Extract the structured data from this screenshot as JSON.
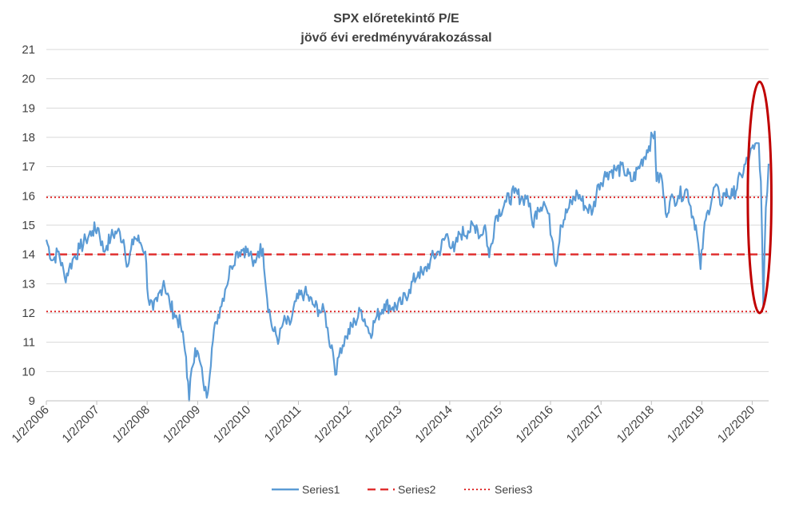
{
  "chart_data": {
    "type": "line",
    "title": "SPX előretekintő P/E",
    "subtitle": "jövő évi eredményvárakozással",
    "xlabel": "",
    "ylabel": "",
    "ylim": [
      9,
      21
    ],
    "yticks": [
      "9",
      "10",
      "11",
      "12",
      "13",
      "14",
      "15",
      "16",
      "17",
      "18",
      "19",
      "20",
      "21"
    ],
    "xticks": [
      "1/2/2006",
      "1/2/2007",
      "1/2/2008",
      "1/2/2009",
      "1/2/2010",
      "1/2/2011",
      "1/2/2012",
      "1/2/2013",
      "1/2/2014",
      "1/2/2015",
      "1/2/2016",
      "1/2/2017",
      "1/2/2018",
      "1/2/2019",
      "1/2/2020"
    ],
    "xlim": [
      "2006-01-02",
      "2020-04-30"
    ],
    "grid": true,
    "legend_position": "bottom",
    "series": [
      {
        "name": "Series1",
        "color": "#5B9BD5",
        "style": "solid",
        "x": [
          "2006-01-02",
          "2006-02-15",
          "2006-04-01",
          "2006-05-15",
          "2006-06-15",
          "2006-07-20",
          "2006-09-01",
          "2006-10-15",
          "2006-12-01",
          "2007-01-15",
          "2007-02-20",
          "2007-03-15",
          "2007-04-15",
          "2007-06-01",
          "2007-07-15",
          "2007-08-15",
          "2007-10-01",
          "2007-11-15",
          "2007-12-20",
          "2008-01-10",
          "2008-02-15",
          "2008-03-15",
          "2008-05-01",
          "2008-06-15",
          "2008-07-15",
          "2008-09-01",
          "2008-10-10",
          "2008-11-01",
          "2008-11-20",
          "2008-12-15",
          "2009-01-15",
          "2009-02-10",
          "2009-03-09",
          "2009-04-15",
          "2009-05-15",
          "2009-06-15",
          "2009-07-20",
          "2009-09-01",
          "2009-10-15",
          "2009-12-01",
          "2010-01-15",
          "2010-02-08",
          "2010-03-15",
          "2010-04-20",
          "2010-05-20",
          "2010-07-01",
          "2010-08-15",
          "2010-09-15",
          "2010-11-01",
          "2010-12-15",
          "2011-02-15",
          "2011-04-15",
          "2011-06-01",
          "2011-07-15",
          "2011-08-10",
          "2011-09-01",
          "2011-10-04",
          "2011-11-01",
          "2011-12-15",
          "2012-02-15",
          "2012-04-01",
          "2012-06-04",
          "2012-07-15",
          "2012-09-15",
          "2012-11-15",
          "2013-01-15",
          "2013-03-15",
          "2013-05-20",
          "2013-06-24",
          "2013-08-15",
          "2013-10-15",
          "2013-12-15",
          "2014-02-03",
          "2014-03-15",
          "2014-05-15",
          "2014-07-15",
          "2014-08-08",
          "2014-09-15",
          "2014-10-15",
          "2014-12-01",
          "2015-02-15",
          "2015-04-15",
          "2015-06-15",
          "2015-07-20",
          "2015-08-25",
          "2015-10-01",
          "2015-11-15",
          "2015-12-15",
          "2016-01-20",
          "2016-02-11",
          "2016-03-15",
          "2016-05-15",
          "2016-07-15",
          "2016-09-15",
          "2016-11-04",
          "2016-12-15",
          "2017-02-15",
          "2017-04-15",
          "2017-06-15",
          "2017-08-15",
          "2017-10-15",
          "2017-12-15",
          "2018-01-26",
          "2018-02-08",
          "2018-03-15",
          "2018-04-15",
          "2018-05-15",
          "2018-06-15",
          "2018-07-15",
          "2018-09-20",
          "2018-10-29",
          "2018-11-20",
          "2018-12-24",
          "2019-01-15",
          "2019-02-15",
          "2019-04-15",
          "2019-05-15",
          "2019-06-15",
          "2019-08-15",
          "2019-10-15",
          "2019-12-15",
          "2020-01-15",
          "2020-02-19",
          "2020-03-05",
          "2020-03-23",
          "2020-04-10",
          "2020-04-30"
        ],
        "values": [
          14.5,
          13.8,
          14.1,
          13.2,
          13.5,
          13.9,
          14.2,
          14.5,
          14.8,
          14.9,
          14.1,
          14.3,
          14.6,
          14.8,
          14.5,
          13.6,
          14.6,
          14.4,
          14.1,
          12.5,
          12.1,
          12.4,
          13.1,
          12.3,
          12.0,
          11.6,
          10.5,
          9.0,
          10.1,
          10.8,
          10.4,
          9.7,
          9.1,
          10.8,
          11.7,
          12.2,
          12.8,
          13.6,
          14.1,
          14.2,
          14.0,
          13.6,
          14.1,
          14.2,
          12.5,
          11.4,
          11.1,
          11.7,
          11.6,
          12.4,
          12.7,
          12.3,
          12.1,
          12.0,
          11.1,
          10.9,
          9.9,
          10.8,
          11.2,
          11.7,
          12.1,
          11.3,
          11.8,
          12.3,
          12.2,
          12.3,
          12.8,
          13.4,
          13.3,
          13.8,
          14.1,
          14.7,
          14.1,
          14.7,
          14.8,
          15.0,
          14.6,
          15.0,
          13.9,
          15.3,
          15.8,
          16.1,
          15.9,
          16.0,
          15.0,
          15.6,
          15.8,
          15.4,
          14.4,
          13.6,
          15.0,
          15.6,
          16.1,
          15.6,
          15.5,
          16.4,
          16.8,
          16.9,
          16.9,
          16.5,
          17.1,
          17.7,
          18.2,
          16.5,
          16.7,
          15.4,
          15.8,
          15.9,
          16.0,
          16.2,
          15.3,
          15.0,
          13.5,
          14.7,
          15.5,
          16.4,
          15.7,
          16.1,
          16.0,
          16.7,
          17.4,
          17.6,
          17.8,
          16.5,
          12.2,
          15.6,
          17.1
        ]
      },
      {
        "name": "Series2",
        "color": "#E03030",
        "style": "dashed",
        "value": 14.0
      },
      {
        "name": "Series3",
        "color": "#E03030",
        "style": "dotted",
        "values": [
          12.05,
          15.95
        ]
      }
    ],
    "annotations": [
      {
        "type": "ellipse",
        "color": "#C00000",
        "x_range": [
          "2019-12-01",
          "2020-05-20"
        ],
        "y_range": [
          12.0,
          19.9
        ]
      }
    ]
  }
}
